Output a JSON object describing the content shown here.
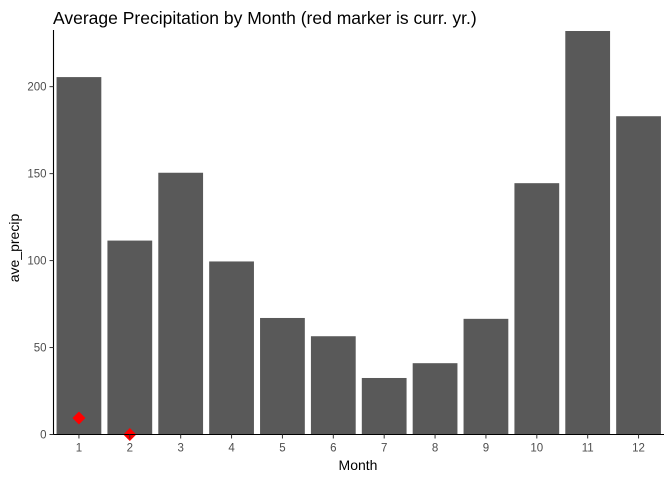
{
  "chart_data": {
    "type": "bar",
    "title": "Average Precipitation by Month (red marker is curr. yr.)",
    "xlabel": "Month",
    "ylabel": "ave_precip",
    "categories": [
      "1",
      "2",
      "3",
      "4",
      "5",
      "6",
      "7",
      "8",
      "9",
      "10",
      "11",
      "12"
    ],
    "series": [
      {
        "values": [
          205.5,
          111.5,
          150.5,
          99.5,
          67,
          56.5,
          32.5,
          41,
          66.5,
          144.5,
          232,
          183
        ]
      }
    ],
    "markers": {
      "categories": [
        "1",
        "2"
      ],
      "values": [
        9.5,
        0
      ]
    },
    "yticks": [
      0,
      50,
      100,
      150,
      200
    ],
    "ylim": [
      0,
      232
    ],
    "grid": false,
    "legend": "none",
    "colors": {
      "bar": "#595959",
      "marker": "#ff0000"
    }
  }
}
